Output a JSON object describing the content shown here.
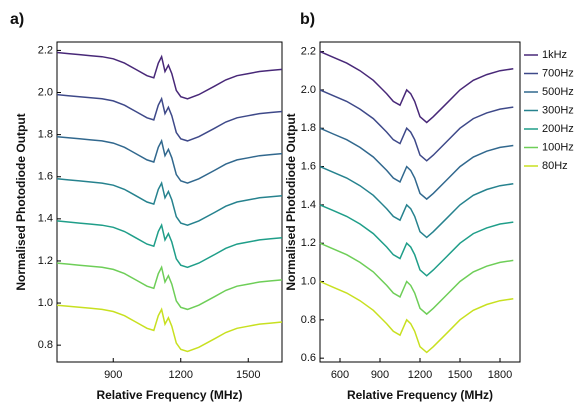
{
  "chart_data": [
    {
      "type": "line",
      "title": "a)",
      "xlabel": "Relative Frequency (MHz)",
      "ylabel": "Normalised Photodiode Output",
      "x": [
        650,
        700,
        750,
        800,
        850,
        900,
        950,
        1000,
        1050,
        1080,
        1100,
        1115,
        1130,
        1145,
        1160,
        1180,
        1200,
        1230,
        1280,
        1350,
        1400,
        1450,
        1500,
        1550,
        1600,
        1650
      ],
      "xlim": [
        650,
        1650
      ],
      "xticks": [
        900,
        1200,
        1500
      ],
      "ylim": [
        0.72,
        2.24
      ],
      "yticks": [
        0.8,
        {
          "value": 1.0,
          "label": "1.0"
        },
        1.2,
        1.4,
        1.6,
        1.8,
        {
          "value": 2.0,
          "label": "2.0"
        },
        2.2
      ],
      "series": [
        {
          "color": "#482878",
          "values": [
            2.19,
            2.185,
            2.18,
            2.175,
            2.17,
            2.16,
            2.14,
            2.11,
            2.08,
            2.07,
            2.14,
            2.17,
            2.1,
            2.13,
            2.09,
            2.01,
            1.98,
            1.97,
            1.99,
            2.03,
            2.06,
            2.08,
            2.09,
            2.1,
            2.105,
            2.11
          ]
        },
        {
          "color": "#3e4989",
          "values": [
            1.99,
            1.985,
            1.98,
            1.975,
            1.97,
            1.96,
            1.94,
            1.91,
            1.88,
            1.87,
            1.94,
            1.97,
            1.9,
            1.93,
            1.89,
            1.81,
            1.78,
            1.77,
            1.79,
            1.83,
            1.86,
            1.88,
            1.89,
            1.9,
            1.905,
            1.91
          ]
        },
        {
          "color": "#31688e",
          "values": [
            1.79,
            1.785,
            1.78,
            1.775,
            1.77,
            1.76,
            1.74,
            1.71,
            1.68,
            1.67,
            1.74,
            1.77,
            1.7,
            1.73,
            1.69,
            1.61,
            1.58,
            1.57,
            1.59,
            1.63,
            1.66,
            1.68,
            1.69,
            1.7,
            1.705,
            1.71
          ]
        },
        {
          "color": "#26828e",
          "values": [
            1.59,
            1.585,
            1.58,
            1.575,
            1.57,
            1.56,
            1.54,
            1.51,
            1.48,
            1.47,
            1.54,
            1.57,
            1.5,
            1.53,
            1.49,
            1.41,
            1.38,
            1.37,
            1.39,
            1.43,
            1.46,
            1.48,
            1.49,
            1.5,
            1.505,
            1.51
          ]
        },
        {
          "color": "#1f9e89",
          "values": [
            1.39,
            1.385,
            1.38,
            1.375,
            1.37,
            1.36,
            1.34,
            1.31,
            1.28,
            1.27,
            1.34,
            1.37,
            1.3,
            1.33,
            1.29,
            1.21,
            1.18,
            1.17,
            1.19,
            1.23,
            1.26,
            1.28,
            1.29,
            1.3,
            1.305,
            1.31
          ]
        },
        {
          "color": "#6ece58",
          "values": [
            1.19,
            1.185,
            1.18,
            1.175,
            1.17,
            1.16,
            1.14,
            1.11,
            1.08,
            1.07,
            1.14,
            1.17,
            1.1,
            1.13,
            1.09,
            1.01,
            0.98,
            0.97,
            0.99,
            1.03,
            1.06,
            1.08,
            1.09,
            1.1,
            1.105,
            1.11
          ]
        },
        {
          "color": "#c8e020",
          "values": [
            0.99,
            0.985,
            0.98,
            0.975,
            0.97,
            0.96,
            0.94,
            0.91,
            0.88,
            0.87,
            0.94,
            0.97,
            0.9,
            0.93,
            0.89,
            0.81,
            0.78,
            0.77,
            0.79,
            0.83,
            0.86,
            0.88,
            0.89,
            0.9,
            0.905,
            0.91
          ]
        }
      ]
    },
    {
      "type": "line",
      "title": "b)",
      "xlabel": "Relative Frequency (MHz)",
      "ylabel": "Normalised Photodiode Output",
      "x": [
        450,
        550,
        650,
        750,
        850,
        950,
        1000,
        1050,
        1100,
        1130,
        1160,
        1200,
        1250,
        1300,
        1400,
        1500,
        1600,
        1700,
        1800,
        1900
      ],
      "xlim": [
        450,
        1950
      ],
      "xticks": [
        600,
        900,
        1200,
        1500,
        1800
      ],
      "ylim": [
        0.58,
        2.25
      ],
      "yticks": [
        0.6,
        0.8,
        {
          "value": 1.0,
          "label": "1.0"
        },
        1.2,
        1.4,
        1.6,
        1.8,
        {
          "value": 2.0,
          "label": "2.0"
        },
        2.2
      ],
      "legend": "outside right",
      "series": [
        {
          "name": "1kHz",
          "color": "#482878",
          "values": [
            2.2,
            2.17,
            2.14,
            2.1,
            2.05,
            1.98,
            1.94,
            1.92,
            2.0,
            1.98,
            1.94,
            1.86,
            1.83,
            1.86,
            1.93,
            2.0,
            2.05,
            2.08,
            2.1,
            2.11
          ]
        },
        {
          "name": "700Hz",
          "color": "#3e4989",
          "values": [
            2.0,
            1.97,
            1.94,
            1.9,
            1.85,
            1.78,
            1.74,
            1.72,
            1.8,
            1.78,
            1.74,
            1.66,
            1.63,
            1.66,
            1.73,
            1.8,
            1.85,
            1.88,
            1.9,
            1.91
          ]
        },
        {
          "name": "500Hz",
          "color": "#31688e",
          "values": [
            1.8,
            1.77,
            1.74,
            1.7,
            1.65,
            1.58,
            1.54,
            1.52,
            1.6,
            1.58,
            1.54,
            1.46,
            1.43,
            1.46,
            1.53,
            1.6,
            1.65,
            1.68,
            1.7,
            1.71
          ]
        },
        {
          "name": "300Hz",
          "color": "#26828e",
          "values": [
            1.6,
            1.57,
            1.54,
            1.5,
            1.45,
            1.38,
            1.34,
            1.32,
            1.4,
            1.38,
            1.34,
            1.26,
            1.23,
            1.26,
            1.33,
            1.4,
            1.45,
            1.48,
            1.5,
            1.51
          ]
        },
        {
          "name": "200Hz",
          "color": "#1f9e89",
          "values": [
            1.4,
            1.37,
            1.34,
            1.3,
            1.25,
            1.18,
            1.14,
            1.12,
            1.2,
            1.18,
            1.14,
            1.06,
            1.03,
            1.06,
            1.13,
            1.2,
            1.25,
            1.28,
            1.3,
            1.31
          ]
        },
        {
          "name": "100Hz",
          "color": "#6ece58",
          "values": [
            1.2,
            1.17,
            1.14,
            1.1,
            1.05,
            0.98,
            0.94,
            0.92,
            1.0,
            0.98,
            0.94,
            0.86,
            0.83,
            0.86,
            0.93,
            1.0,
            1.05,
            1.08,
            1.1,
            1.11
          ]
        },
        {
          "name": "80Hz",
          "color": "#c8e020",
          "values": [
            1.0,
            0.97,
            0.94,
            0.9,
            0.85,
            0.78,
            0.74,
            0.72,
            0.8,
            0.78,
            0.74,
            0.66,
            0.63,
            0.66,
            0.73,
            0.8,
            0.85,
            0.88,
            0.9,
            0.91
          ]
        }
      ]
    }
  ]
}
